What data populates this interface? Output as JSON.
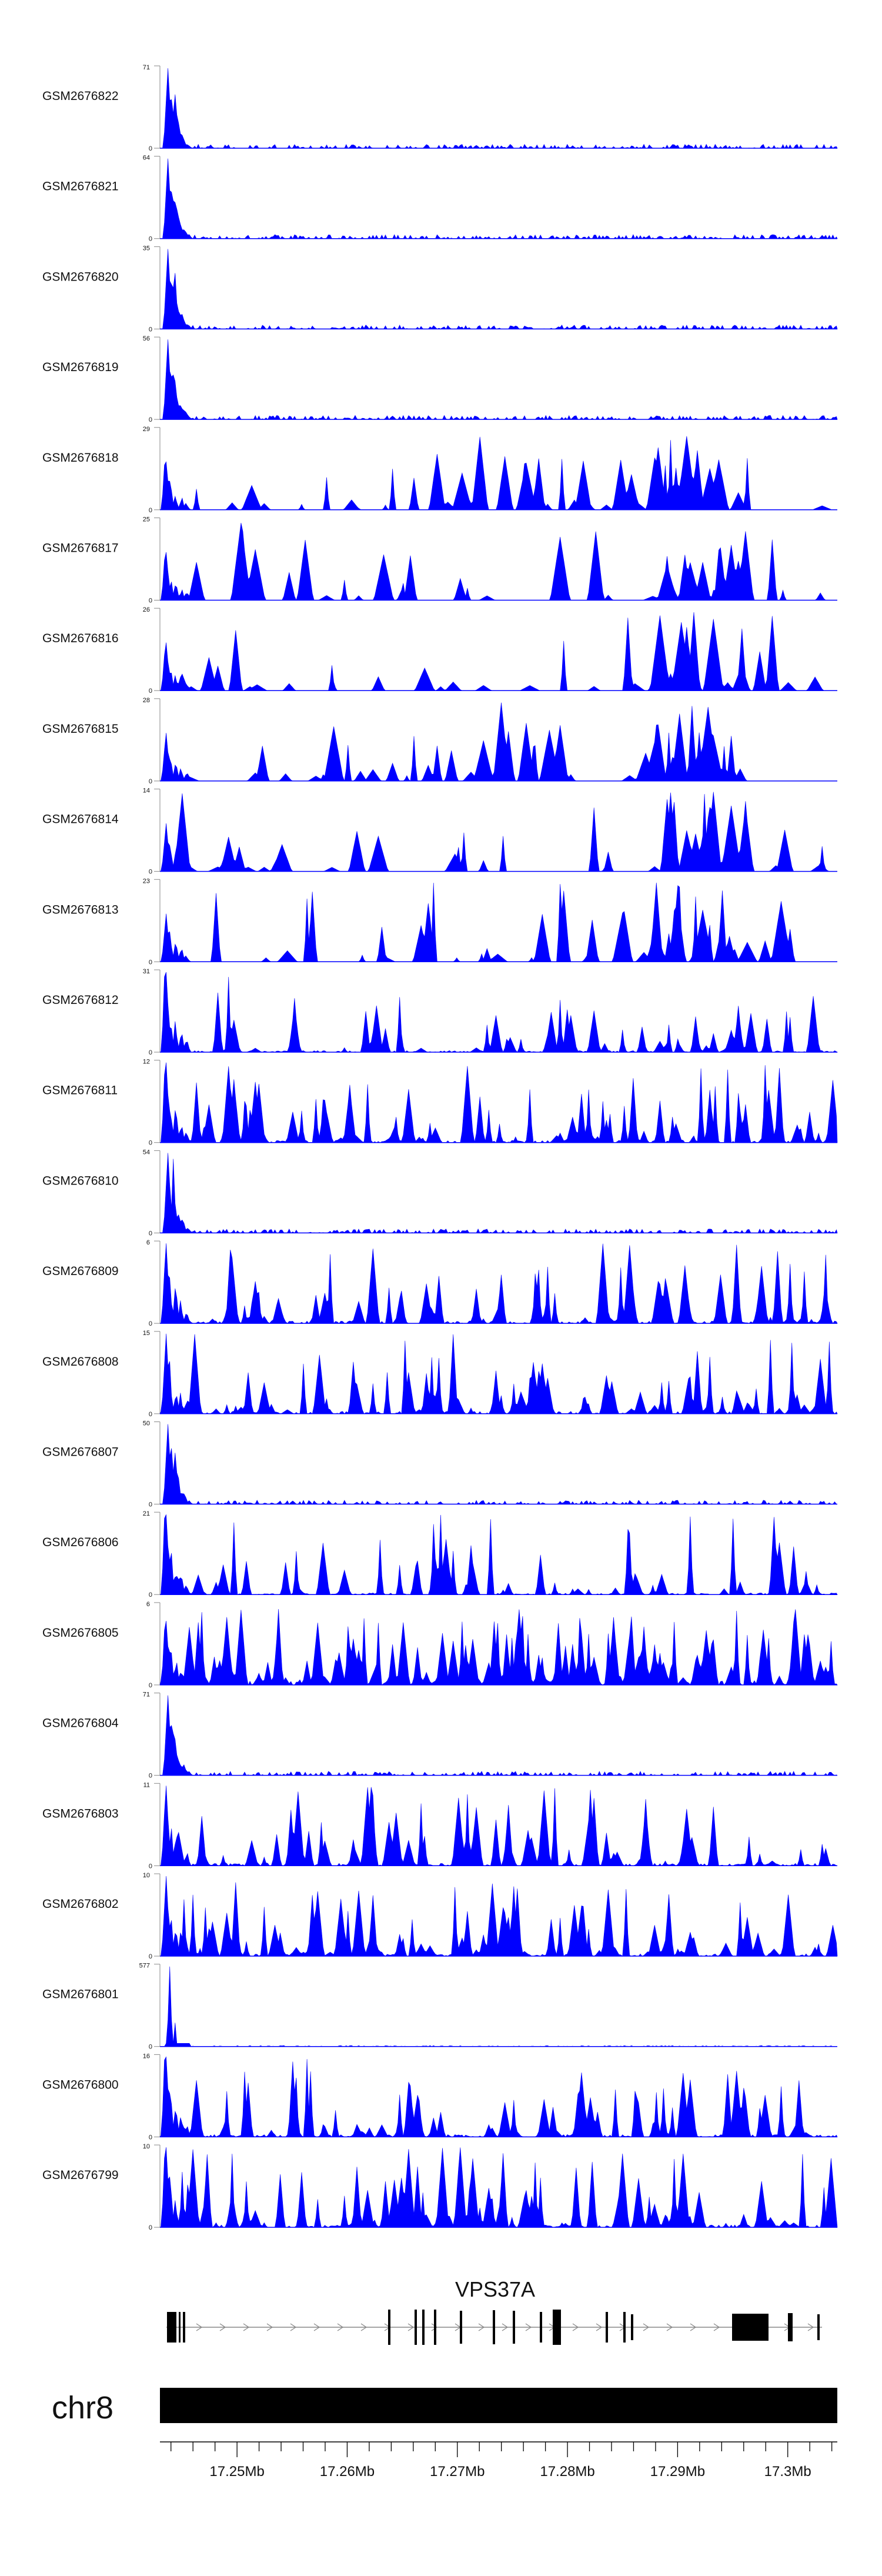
{
  "chart_data": {
    "type": "area",
    "chromosome": "chr8",
    "gene": "VPS37A",
    "x_range_mb": [
      17.243,
      17.3045
    ],
    "x_tick_labels": [
      "17.25Mb",
      "17.26Mb",
      "17.27Mb",
      "17.28Mb",
      "17.29Mb",
      "17.3Mb"
    ],
    "fill_color": "#0000ff",
    "tracks": [
      {
        "name": "GSM2676822",
        "ymax": "71",
        "ymin": "0",
        "profile": "promoter",
        "seed": 1
      },
      {
        "name": "GSM2676821",
        "ymax": "64",
        "ymin": "0",
        "profile": "promoter",
        "seed": 2
      },
      {
        "name": "GSM2676820",
        "ymax": "35",
        "ymin": "0",
        "profile": "promoter",
        "seed": 3
      },
      {
        "name": "GSM2676819",
        "ymax": "56",
        "ymin": "0",
        "profile": "promoter",
        "seed": 4
      },
      {
        "name": "GSM2676818",
        "ymax": "29",
        "ymin": "0",
        "profile": "sparse",
        "seed": 5
      },
      {
        "name": "GSM2676817",
        "ymax": "25",
        "ymin": "0",
        "profile": "sparse",
        "seed": 6
      },
      {
        "name": "GSM2676816",
        "ymax": "26",
        "ymin": "0",
        "profile": "sparse",
        "seed": 7
      },
      {
        "name": "GSM2676815",
        "ymax": "28",
        "ymin": "0",
        "profile": "sparse",
        "seed": 8
      },
      {
        "name": "GSM2676814",
        "ymax": "14",
        "ymin": "0",
        "profile": "sparse",
        "seed": 9
      },
      {
        "name": "GSM2676813",
        "ymax": "23",
        "ymin": "0",
        "profile": "sparse",
        "seed": 10
      },
      {
        "name": "GSM2676812",
        "ymax": "31",
        "ymin": "0",
        "profile": "mixed",
        "seed": 11
      },
      {
        "name": "GSM2676811",
        "ymax": "12",
        "ymin": "0",
        "profile": "broad",
        "seed": 12
      },
      {
        "name": "GSM2676810",
        "ymax": "54",
        "ymin": "0",
        "profile": "promoter",
        "seed": 13
      },
      {
        "name": "GSM2676809",
        "ymax": "6",
        "ymin": "0",
        "profile": "broad",
        "seed": 14
      },
      {
        "name": "GSM2676808",
        "ymax": "15",
        "ymin": "0",
        "profile": "broad",
        "seed": 15
      },
      {
        "name": "GSM2676807",
        "ymax": "50",
        "ymin": "0",
        "profile": "promoter",
        "seed": 16
      },
      {
        "name": "GSM2676806",
        "ymax": "21",
        "ymin": "0",
        "profile": "mixed",
        "seed": 17
      },
      {
        "name": "GSM2676805",
        "ymax": "6",
        "ymin": "0",
        "profile": "dense",
        "seed": 18
      },
      {
        "name": "GSM2676804",
        "ymax": "71",
        "ymin": "0",
        "profile": "promoter",
        "seed": 19
      },
      {
        "name": "GSM2676803",
        "ymax": "11",
        "ymin": "0",
        "profile": "broad",
        "seed": 20
      },
      {
        "name": "GSM2676802",
        "ymax": "10",
        "ymin": "0",
        "profile": "broad",
        "seed": 21
      },
      {
        "name": "GSM2676801",
        "ymax": "577",
        "ymin": "0",
        "profile": "spike",
        "seed": 22
      },
      {
        "name": "GSM2676800",
        "ymax": "16",
        "ymin": "0",
        "profile": "broad",
        "seed": 23
      },
      {
        "name": "GSM2676799",
        "ymax": "10",
        "ymin": "0",
        "profile": "broad",
        "seed": 24
      }
    ]
  }
}
